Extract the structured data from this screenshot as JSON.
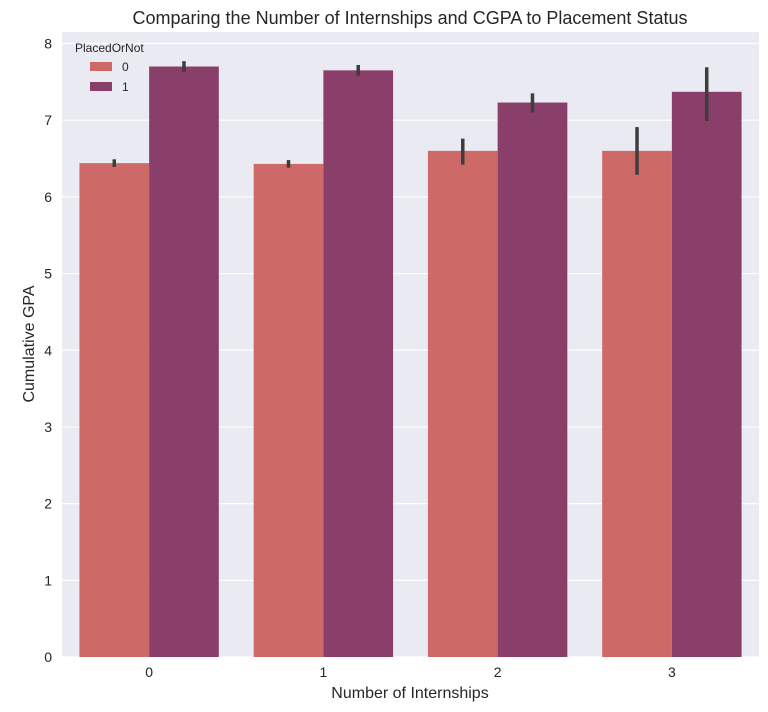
{
  "chart_data": {
    "type": "bar",
    "title": "Comparing the Number of Internships and CGPA to Placement Status",
    "xlabel": "Number of Internships",
    "ylabel": "Cumulative GPA",
    "categories": [
      "0",
      "1",
      "2",
      "3"
    ],
    "ylim": [
      0,
      8.15
    ],
    "yticks": [
      0,
      1,
      2,
      3,
      4,
      5,
      6,
      7,
      8
    ],
    "grid": true,
    "legend": {
      "title": "PlacedOrNot",
      "placement": "top-left"
    },
    "series": [
      {
        "name": "0",
        "color": "#cd6a67",
        "values": [
          6.44,
          6.43,
          6.6,
          6.6
        ],
        "ci_low": [
          6.39,
          6.38,
          6.42,
          6.29
        ],
        "ci_high": [
          6.49,
          6.48,
          6.76,
          6.91
        ]
      },
      {
        "name": "1",
        "color": "#8a3e6a",
        "values": [
          7.7,
          7.65,
          7.23,
          7.37
        ],
        "ci_low": [
          7.63,
          7.58,
          7.1,
          6.99
        ],
        "ci_high": [
          7.77,
          7.72,
          7.35,
          7.69
        ]
      }
    ],
    "colors": {
      "background": "#eaeaf2",
      "grid": "#ffffff",
      "errorbar": "#3d3d3d",
      "text": "#262626"
    }
  }
}
